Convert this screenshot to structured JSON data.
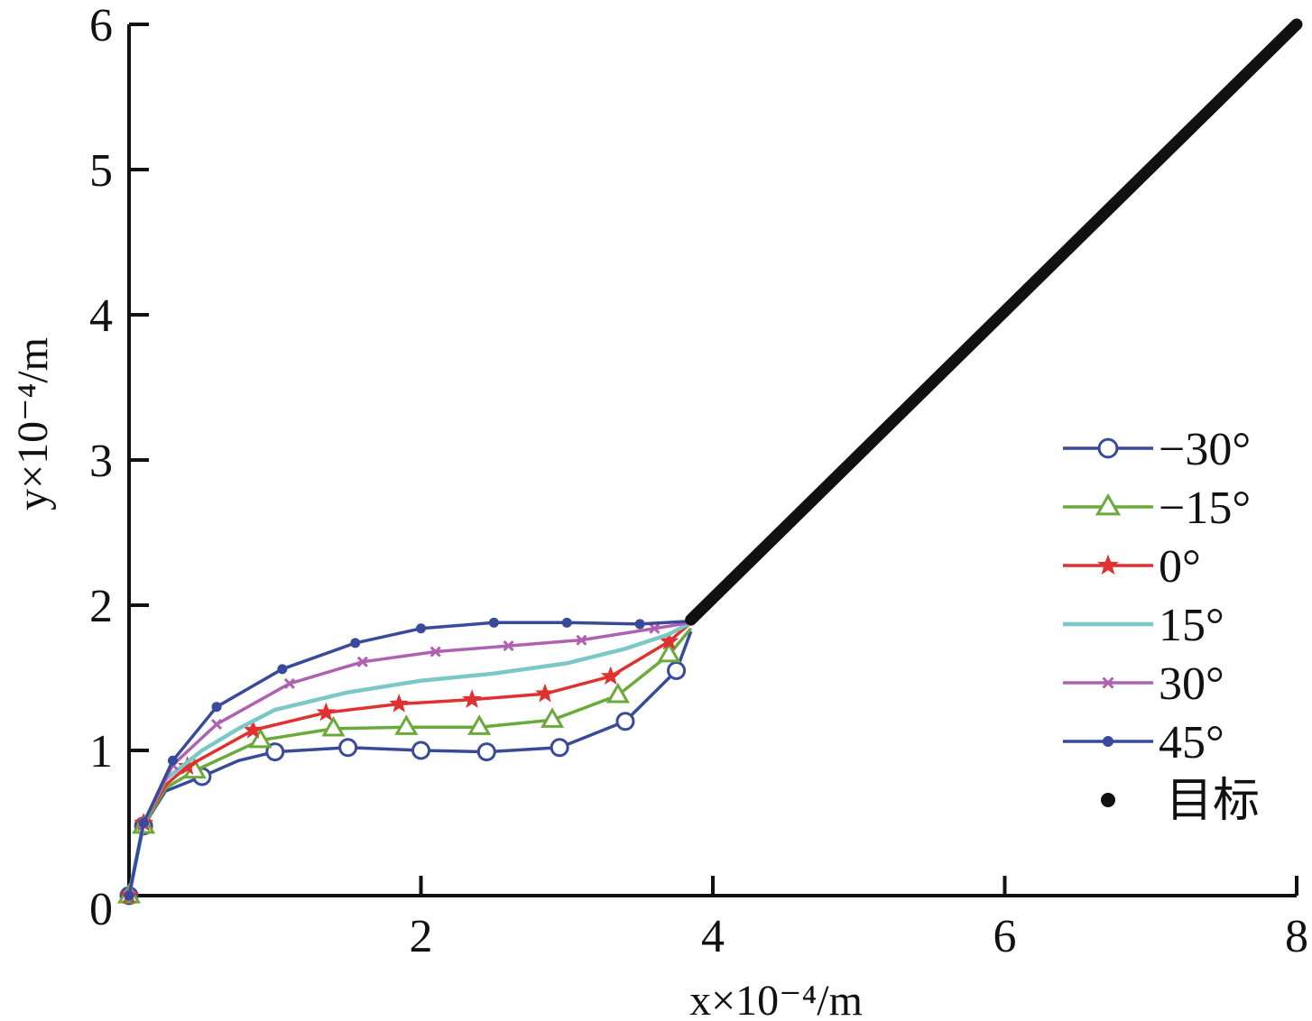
{
  "chart_data": {
    "type": "line",
    "title": "",
    "xlabel": "x×10⁻⁴/m",
    "ylabel": "y×10⁻⁴/m",
    "xlim": [
      0,
      8
    ],
    "ylim": [
      0,
      6
    ],
    "x_ticks": [
      "0",
      "2",
      "4",
      "6",
      "8"
    ],
    "y_ticks": [
      "0",
      "1",
      "2",
      "3",
      "4",
      "5",
      "6"
    ],
    "grid": false,
    "legend_position": "right-middle",
    "target": {
      "name": "目标",
      "color": "#111111",
      "start": [
        3.85,
        1.9
      ],
      "end": [
        8.0,
        6.0
      ],
      "marker": "dot"
    },
    "series": [
      {
        "name": "−30°",
        "color": "#3a4a9a",
        "marker": "circle",
        "points": [
          [
            0,
            0
          ],
          [
            0.1,
            0.48
          ],
          [
            0.25,
            0.72
          ],
          [
            0.5,
            0.82
          ],
          [
            0.75,
            0.93
          ],
          [
            1.0,
            0.99
          ],
          [
            1.5,
            1.02
          ],
          [
            2.0,
            1.0
          ],
          [
            2.45,
            0.99
          ],
          [
            2.95,
            1.02
          ],
          [
            3.4,
            1.2
          ],
          [
            3.75,
            1.55
          ],
          [
            3.85,
            1.82
          ]
        ],
        "marker_points": [
          [
            0,
            0
          ],
          [
            0.1,
            0.48
          ],
          [
            0.5,
            0.82
          ],
          [
            1.0,
            0.99
          ],
          [
            1.5,
            1.02
          ],
          [
            2.0,
            1.0
          ],
          [
            2.45,
            0.99
          ],
          [
            2.95,
            1.02
          ],
          [
            3.4,
            1.2
          ],
          [
            3.75,
            1.55
          ]
        ]
      },
      {
        "name": "−15°",
        "color": "#6aaa3a",
        "marker": "triangle",
        "points": [
          [
            0,
            0
          ],
          [
            0.1,
            0.48
          ],
          [
            0.25,
            0.74
          ],
          [
            0.45,
            0.86
          ],
          [
            0.9,
            1.07
          ],
          [
            1.4,
            1.15
          ],
          [
            1.9,
            1.16
          ],
          [
            2.4,
            1.16
          ],
          [
            2.9,
            1.21
          ],
          [
            3.35,
            1.38
          ],
          [
            3.7,
            1.66
          ],
          [
            3.85,
            1.84
          ]
        ],
        "marker_points": [
          [
            0,
            0
          ],
          [
            0.1,
            0.48
          ],
          [
            0.45,
            0.86
          ],
          [
            0.9,
            1.07
          ],
          [
            1.4,
            1.15
          ],
          [
            1.9,
            1.16
          ],
          [
            2.4,
            1.16
          ],
          [
            2.9,
            1.21
          ],
          [
            3.35,
            1.38
          ],
          [
            3.7,
            1.66
          ]
        ]
      },
      {
        "name": "0°",
        "color": "#e03030",
        "marker": "star",
        "points": [
          [
            0,
            0
          ],
          [
            0.1,
            0.5
          ],
          [
            0.25,
            0.76
          ],
          [
            0.4,
            0.89
          ],
          [
            0.85,
            1.14
          ],
          [
            1.35,
            1.26
          ],
          [
            1.85,
            1.32
          ],
          [
            2.35,
            1.35
          ],
          [
            2.85,
            1.39
          ],
          [
            3.3,
            1.51
          ],
          [
            3.7,
            1.75
          ],
          [
            3.85,
            1.88
          ]
        ],
        "marker_points": [
          [
            0,
            0
          ],
          [
            0.1,
            0.5
          ],
          [
            0.4,
            0.89
          ],
          [
            0.85,
            1.14
          ],
          [
            1.35,
            1.26
          ],
          [
            1.85,
            1.32
          ],
          [
            2.35,
            1.35
          ],
          [
            2.85,
            1.39
          ],
          [
            3.3,
            1.51
          ],
          [
            3.7,
            1.75
          ]
        ]
      },
      {
        "name": "15°",
        "color": "#7cc8c8",
        "marker": "none",
        "points": [
          [
            0,
            0
          ],
          [
            0.1,
            0.5
          ],
          [
            0.25,
            0.8
          ],
          [
            0.5,
            1.0
          ],
          [
            0.75,
            1.15
          ],
          [
            1.0,
            1.28
          ],
          [
            1.5,
            1.4
          ],
          [
            2.0,
            1.48
          ],
          [
            2.5,
            1.53
          ],
          [
            3.0,
            1.6
          ],
          [
            3.4,
            1.7
          ],
          [
            3.7,
            1.8
          ],
          [
            3.85,
            1.88
          ]
        ],
        "marker_points": []
      },
      {
        "name": "30°",
        "color": "#b060b0",
        "marker": "x",
        "points": [
          [
            0,
            0
          ],
          [
            0.1,
            0.5
          ],
          [
            0.3,
            0.9
          ],
          [
            0.6,
            1.18
          ],
          [
            1.1,
            1.46
          ],
          [
            1.6,
            1.61
          ],
          [
            2.1,
            1.68
          ],
          [
            2.6,
            1.72
          ],
          [
            3.1,
            1.76
          ],
          [
            3.6,
            1.84
          ],
          [
            3.85,
            1.88
          ]
        ],
        "marker_points": [
          [
            0,
            0
          ],
          [
            0.1,
            0.5
          ],
          [
            0.3,
            0.9
          ],
          [
            0.6,
            1.18
          ],
          [
            1.1,
            1.46
          ],
          [
            1.6,
            1.61
          ],
          [
            2.1,
            1.68
          ],
          [
            2.6,
            1.72
          ],
          [
            3.1,
            1.76
          ],
          [
            3.6,
            1.84
          ]
        ]
      },
      {
        "name": "45°",
        "color": "#3a4a9a",
        "marker": "dot",
        "points": [
          [
            0,
            0
          ],
          [
            0.1,
            0.5
          ],
          [
            0.3,
            0.93
          ],
          [
            0.6,
            1.3
          ],
          [
            1.05,
            1.56
          ],
          [
            1.55,
            1.74
          ],
          [
            2.0,
            1.84
          ],
          [
            2.5,
            1.88
          ],
          [
            3.0,
            1.88
          ],
          [
            3.5,
            1.87
          ],
          [
            3.85,
            1.89
          ]
        ],
        "marker_points": [
          [
            0,
            0
          ],
          [
            0.1,
            0.5
          ],
          [
            0.3,
            0.93
          ],
          [
            0.6,
            1.3
          ],
          [
            1.05,
            1.56
          ],
          [
            1.55,
            1.74
          ],
          [
            2.0,
            1.84
          ],
          [
            2.5,
            1.88
          ],
          [
            3.0,
            1.88
          ],
          [
            3.5,
            1.87
          ]
        ]
      }
    ]
  }
}
